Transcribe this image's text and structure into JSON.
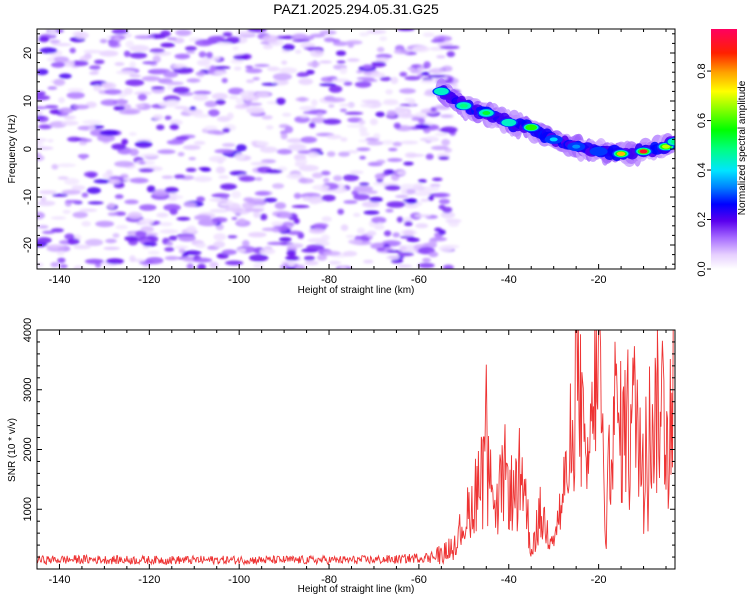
{
  "title": "PAZ1.2025.294.05.31.G25",
  "chart_data": [
    {
      "type": "heatmap",
      "title": "PAZ1.2025.294.05.31.G25",
      "xlabel": "Height of straight line (km)",
      "ylabel": "Frequency (Hz)",
      "xlim": [
        -145,
        -3
      ],
      "ylim": [
        -25,
        25
      ],
      "xticks": [
        -140,
        -120,
        -100,
        -80,
        -60,
        -40,
        -20
      ],
      "yticks": [
        -20,
        -10,
        0,
        10,
        20
      ],
      "colorbar": {
        "label": "Normalized spectral amplitude",
        "range": [
          0,
          0.97
        ],
        "ticks": [
          0.0,
          0.2,
          0.4,
          0.6,
          0.8
        ]
      },
      "noise_region": {
        "x_range": [
          -145,
          -52
        ],
        "y_range": [
          -25,
          25
        ],
        "typical_amplitude": 0.15
      },
      "signal_ridge": {
        "description": "Doppler frequency of the occultation signal vs height",
        "x": [
          -55,
          -50,
          -45,
          -40,
          -35,
          -30,
          -25,
          -20,
          -15,
          -10,
          -5,
          -3
        ],
        "y": [
          12,
          9,
          7.5,
          5.5,
          4.5,
          2,
          0.5,
          -0.5,
          -1,
          -0.5,
          0.5,
          1.5
        ],
        "peak_amplitude": [
          0.45,
          0.5,
          0.55,
          0.45,
          0.6,
          0.4,
          0.35,
          0.3,
          0.8,
          0.95,
          0.7,
          0.5
        ]
      }
    },
    {
      "type": "line",
      "xlabel": "Height of straight line (km)",
      "ylabel": "SNR (10 * v/v)",
      "xlim": [
        -145,
        -3
      ],
      "ylim": [
        0,
        4000
      ],
      "xticks": [
        -140,
        -120,
        -100,
        -80,
        -60,
        -40,
        -20
      ],
      "yticks": [
        1000,
        2000,
        3000,
        4000
      ],
      "series": [
        {
          "name": "SNR",
          "color": "#ee3333",
          "x": [
            -145,
            -135,
            -125,
            -115,
            -105,
            -95,
            -85,
            -75,
            -65,
            -58,
            -54,
            -51,
            -48,
            -46,
            -44.5,
            -43,
            -41,
            -39,
            -37,
            -35,
            -33,
            -31,
            -29,
            -27,
            -26,
            -25,
            -24.5,
            -23,
            -21.5,
            -20.5,
            -19.5,
            -18.5,
            -17,
            -15,
            -13,
            -11,
            -9,
            -7,
            -6,
            -5,
            -4,
            -3
          ],
          "y": [
            150,
            160,
            150,
            150,
            150,
            150,
            150,
            150,
            160,
            200,
            300,
            600,
            1100,
            1800,
            2750,
            900,
            1600,
            1200,
            1700,
            300,
            900,
            600,
            800,
            1600,
            2200,
            3300,
            3500,
            1500,
            2200,
            4050,
            3100,
            250,
            2800,
            2250,
            2600,
            2500,
            2300,
            2600,
            2900,
            2400,
            3100,
            3900
          ]
        }
      ]
    }
  ]
}
